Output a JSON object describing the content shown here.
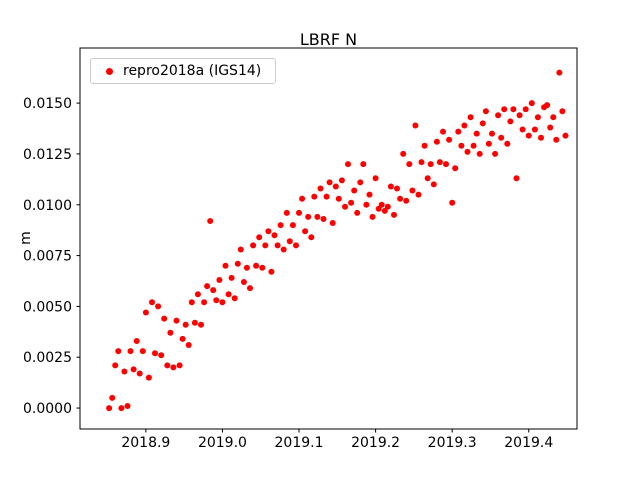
{
  "title": "LBRF N",
  "ylabel": "m",
  "legend": {
    "label": "repro2018a (IGS14)",
    "marker_color": "#ff0000"
  },
  "chart_data": {
    "type": "scatter",
    "title": "LBRF N",
    "xlabel": "",
    "ylabel": "m",
    "series_name": "repro2018a (IGS14)",
    "marker_color": "#ff0000",
    "grid": false,
    "legend_position": "upper left",
    "xlim": [
      2018.814,
      2019.463
    ],
    "ylim": [
      -0.00103,
      0.01771
    ],
    "xticks": [
      2018.9,
      2019.0,
      2019.1,
      2019.2,
      2019.3,
      2019.4
    ],
    "xtick_labels": [
      "2018.9",
      "2019.0",
      "2019.1",
      "2019.2",
      "2019.3",
      "2019.4"
    ],
    "yticks": [
      0.0,
      0.0025,
      0.005,
      0.0075,
      0.01,
      0.0125,
      0.015
    ],
    "ytick_labels": [
      "0.0000",
      "0.0025",
      "0.0050",
      "0.0075",
      "0.0100",
      "0.0125",
      "0.0150"
    ],
    "points": [
      [
        2018.852,
        0.0
      ],
      [
        2018.856,
        0.0005
      ],
      [
        2018.86,
        0.0021
      ],
      [
        2018.864,
        0.0028
      ],
      [
        2018.868,
        0.0
      ],
      [
        2018.872,
        0.0018
      ],
      [
        2018.876,
        0.0001
      ],
      [
        2018.88,
        0.0028
      ],
      [
        2018.884,
        0.0019
      ],
      [
        2018.888,
        0.0033
      ],
      [
        2018.892,
        0.0017
      ],
      [
        2018.896,
        0.0028
      ],
      [
        2018.9,
        0.0047
      ],
      [
        2018.904,
        0.0015
      ],
      [
        2018.908,
        0.0052
      ],
      [
        2018.912,
        0.0027
      ],
      [
        2018.916,
        0.005
      ],
      [
        2018.92,
        0.0026
      ],
      [
        2018.924,
        0.0044
      ],
      [
        2018.928,
        0.0021
      ],
      [
        2018.932,
        0.0037
      ],
      [
        2018.936,
        0.002
      ],
      [
        2018.94,
        0.0043
      ],
      [
        2018.944,
        0.0021
      ],
      [
        2018.948,
        0.0034
      ],
      [
        2018.952,
        0.0041
      ],
      [
        2018.956,
        0.0031
      ],
      [
        2018.96,
        0.0052
      ],
      [
        2018.964,
        0.0042
      ],
      [
        2018.968,
        0.0056
      ],
      [
        2018.972,
        0.0041
      ],
      [
        2018.976,
        0.0052
      ],
      [
        2018.98,
        0.006
      ],
      [
        2018.984,
        0.0092
      ],
      [
        2018.988,
        0.0058
      ],
      [
        2018.992,
        0.0053
      ],
      [
        2018.996,
        0.0063
      ],
      [
        2019.0,
        0.0052
      ],
      [
        2019.004,
        0.007
      ],
      [
        2019.008,
        0.0056
      ],
      [
        2019.012,
        0.0064
      ],
      [
        2019.016,
        0.0054
      ],
      [
        2019.02,
        0.0071
      ],
      [
        2019.024,
        0.0078
      ],
      [
        2019.028,
        0.0062
      ],
      [
        2019.032,
        0.0069
      ],
      [
        2019.036,
        0.0059
      ],
      [
        2019.04,
        0.008
      ],
      [
        2019.044,
        0.007
      ],
      [
        2019.048,
        0.0084
      ],
      [
        2019.052,
        0.0069
      ],
      [
        2019.056,
        0.008
      ],
      [
        2019.06,
        0.0087
      ],
      [
        2019.064,
        0.0067
      ],
      [
        2019.068,
        0.0085
      ],
      [
        2019.072,
        0.008
      ],
      [
        2019.076,
        0.009
      ],
      [
        2019.08,
        0.0078
      ],
      [
        2019.084,
        0.0096
      ],
      [
        2019.088,
        0.0082
      ],
      [
        2019.092,
        0.009
      ],
      [
        2019.096,
        0.008
      ],
      [
        2019.1,
        0.0096
      ],
      [
        2019.104,
        0.0103
      ],
      [
        2019.108,
        0.0087
      ],
      [
        2019.112,
        0.0094
      ],
      [
        2019.116,
        0.0084
      ],
      [
        2019.12,
        0.0104
      ],
      [
        2019.124,
        0.0094
      ],
      [
        2019.128,
        0.0108
      ],
      [
        2019.132,
        0.0093
      ],
      [
        2019.136,
        0.0104
      ],
      [
        2019.14,
        0.0111
      ],
      [
        2019.144,
        0.0091
      ],
      [
        2019.148,
        0.0109
      ],
      [
        2019.152,
        0.0103
      ],
      [
        2019.156,
        0.0112
      ],
      [
        2019.16,
        0.0099
      ],
      [
        2019.164,
        0.012
      ],
      [
        2019.168,
        0.0101
      ],
      [
        2019.172,
        0.0107
      ],
      [
        2019.176,
        0.0096
      ],
      [
        2019.18,
        0.0111
      ],
      [
        2019.184,
        0.012
      ],
      [
        2019.188,
        0.01
      ],
      [
        2019.192,
        0.0105
      ],
      [
        2019.196,
        0.0094
      ],
      [
        2019.2,
        0.0113
      ],
      [
        2019.204,
        0.0098
      ],
      [
        2019.208,
        0.01
      ],
      [
        2019.212,
        0.0097
      ],
      [
        2019.216,
        0.0099
      ],
      [
        2019.22,
        0.0109
      ],
      [
        2019.224,
        0.0095
      ],
      [
        2019.228,
        0.0108
      ],
      [
        2019.232,
        0.0103
      ],
      [
        2019.236,
        0.0125
      ],
      [
        2019.24,
        0.0102
      ],
      [
        2019.244,
        0.012
      ],
      [
        2019.248,
        0.0107
      ],
      [
        2019.252,
        0.0139
      ],
      [
        2019.256,
        0.0105
      ],
      [
        2019.26,
        0.0121
      ],
      [
        2019.264,
        0.0129
      ],
      [
        2019.268,
        0.0113
      ],
      [
        2019.272,
        0.012
      ],
      [
        2019.276,
        0.011
      ],
      [
        2019.28,
        0.0131
      ],
      [
        2019.284,
        0.0121
      ],
      [
        2019.288,
        0.0136
      ],
      [
        2019.292,
        0.012
      ],
      [
        2019.296,
        0.0132
      ],
      [
        2019.3,
        0.0101
      ],
      [
        2019.304,
        0.0118
      ],
      [
        2019.308,
        0.0136
      ],
      [
        2019.312,
        0.0129
      ],
      [
        2019.316,
        0.0139
      ],
      [
        2019.32,
        0.0126
      ],
      [
        2019.324,
        0.0143
      ],
      [
        2019.328,
        0.0129
      ],
      [
        2019.332,
        0.0135
      ],
      [
        2019.336,
        0.0125
      ],
      [
        2019.34,
        0.014
      ],
      [
        2019.344,
        0.0146
      ],
      [
        2019.348,
        0.013
      ],
      [
        2019.352,
        0.0135
      ],
      [
        2019.356,
        0.0125
      ],
      [
        2019.36,
        0.0144
      ],
      [
        2019.364,
        0.0133
      ],
      [
        2019.368,
        0.0147
      ],
      [
        2019.372,
        0.013
      ],
      [
        2019.376,
        0.0141
      ],
      [
        2019.38,
        0.0147
      ],
      [
        2019.384,
        0.0113
      ],
      [
        2019.388,
        0.0144
      ],
      [
        2019.392,
        0.0137
      ],
      [
        2019.396,
        0.0147
      ],
      [
        2019.4,
        0.0134
      ],
      [
        2019.404,
        0.015
      ],
      [
        2019.408,
        0.0137
      ],
      [
        2019.412,
        0.0143
      ],
      [
        2019.416,
        0.0133
      ],
      [
        2019.42,
        0.0148
      ],
      [
        2019.424,
        0.0149
      ],
      [
        2019.428,
        0.0138
      ],
      [
        2019.432,
        0.0143
      ],
      [
        2019.436,
        0.0132
      ],
      [
        2019.44,
        0.0165
      ],
      [
        2019.444,
        0.0146
      ],
      [
        2019.448,
        0.0134
      ]
    ]
  }
}
